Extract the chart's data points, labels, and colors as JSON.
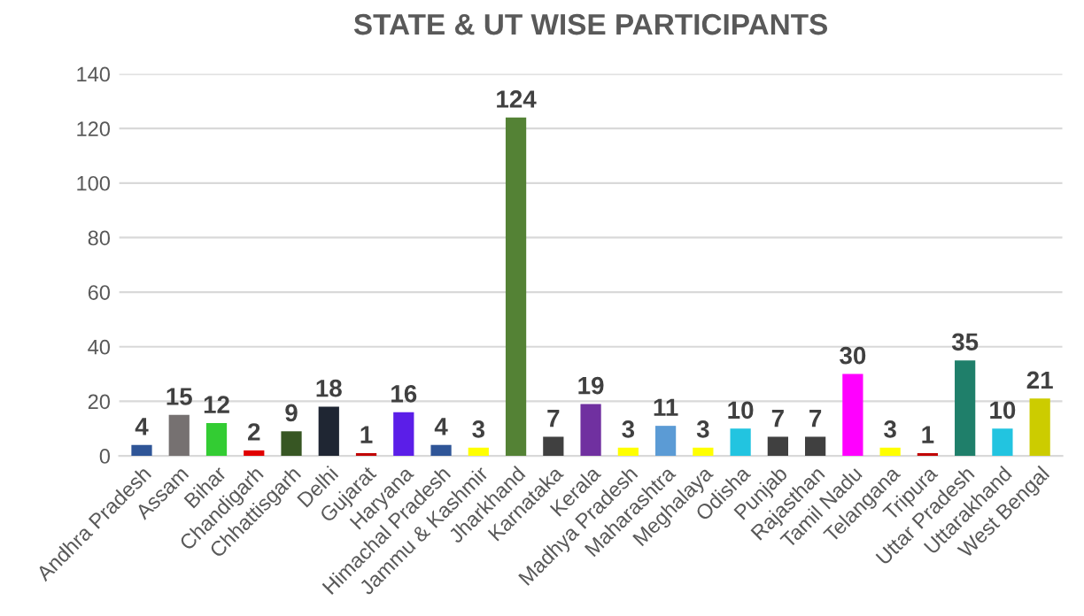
{
  "chart_data": {
    "type": "bar",
    "title": "STATE & UT WISE PARTICIPANTS",
    "categories": [
      "Andhra Pradesh",
      "Assam",
      "Bihar",
      "Chandigarh",
      "Chhattisgarh",
      "Delhi",
      "Gujarat",
      "Haryana",
      "Himachal Pradesh",
      "Jammu & Kashmir",
      "Jharkhand",
      "Karnataka",
      "Kerala",
      "Madhya Pradesh",
      "Maharashtra",
      "Meghalaya",
      "Odisha",
      "Punjab",
      "Rajasthan",
      "Tamil Nadu",
      "Telangana",
      "Tripura",
      "Uttar Pradesh",
      "Uttarakhand",
      "West Bengal"
    ],
    "values": [
      4,
      15,
      12,
      2,
      9,
      18,
      1,
      16,
      4,
      3,
      124,
      7,
      19,
      3,
      11,
      3,
      10,
      7,
      7,
      30,
      3,
      1,
      35,
      10,
      21
    ],
    "colors": [
      "#2f5597",
      "#767171",
      "#33cc33",
      "#e00000",
      "#375623",
      "#1f2633",
      "#c00000",
      "#5b1ee8",
      "#2f5597",
      "#ffff00",
      "#548235",
      "#404040",
      "#7030a0",
      "#ffff00",
      "#5b9bd5",
      "#ffff00",
      "#22c4e0",
      "#404040",
      "#404040",
      "#ff00ff",
      "#ffff00",
      "#c00000",
      "#1f7f6a",
      "#22c4e0",
      "#cccc00"
    ],
    "ylim": [
      0,
      140
    ],
    "yticks": [
      0,
      20,
      40,
      60,
      80,
      100,
      120,
      140
    ],
    "grid": "y",
    "data_labels": true
  }
}
